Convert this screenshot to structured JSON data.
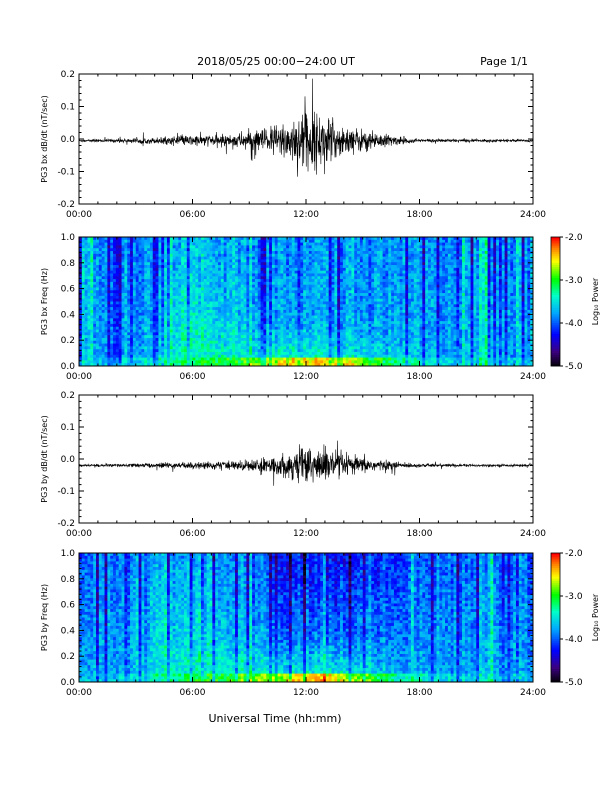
{
  "header": {
    "title": "2018/05/25  00:00−24:00 UT",
    "page": "Page 1/1"
  },
  "footer": {
    "xlabel": "Universal Time (hh:mm)"
  },
  "chart_data": [
    {
      "type": "line",
      "ylabel": "PG3 bx dB/dt (nT/sec)",
      "xlim": [
        0,
        24
      ],
      "ylim": [
        -0.2,
        0.2
      ],
      "xticks": [
        "00:00",
        "06:00",
        "12:00",
        "18:00",
        "24:00"
      ],
      "yticks": [
        "0.2",
        "0.1",
        "0.0",
        "-0.1",
        "-0.2"
      ],
      "baseline": -0.005,
      "envelope": {
        "x": [
          0,
          2,
          4,
          6,
          8,
          10,
          11,
          12,
          13,
          14,
          16,
          17,
          18,
          20,
          22,
          24
        ],
        "amp": [
          0.004,
          0.006,
          0.01,
          0.018,
          0.02,
          0.045,
          0.07,
          0.1,
          0.08,
          0.05,
          0.025,
          0.012,
          0.006,
          0.005,
          0.004,
          0.004
        ]
      }
    },
    {
      "type": "heatmap",
      "ylabel": "PG3 bx Freq (Hz)",
      "xlim": [
        0,
        24
      ],
      "ylim": [
        0,
        1.0
      ],
      "xticks": [
        "00:00",
        "06:00",
        "12:00",
        "18:00",
        "24:00"
      ],
      "yticks": [
        "1.0",
        "0.8",
        "0.6",
        "0.4",
        "0.2",
        "0.0"
      ],
      "colorbar": {
        "label": "Log₁₀ Power",
        "range": [
          -5.0,
          -2.0
        ],
        "ticks": [
          "-2.0",
          "-3.0",
          "-4.0",
          "-5.0"
        ]
      }
    },
    {
      "type": "line",
      "ylabel": "PG3 by dB/dt (nT/sec)",
      "xlim": [
        0,
        24
      ],
      "ylim": [
        -0.2,
        0.2
      ],
      "xticks": [
        "00:00",
        "06:00",
        "12:00",
        "18:00",
        "24:00"
      ],
      "yticks": [
        "0.2",
        "0.1",
        "0.0",
        "-0.1",
        "-0.2"
      ],
      "baseline": -0.02,
      "envelope": {
        "x": [
          0,
          2,
          4,
          6,
          8,
          10,
          11,
          12,
          13,
          14,
          16,
          17,
          18,
          20,
          22,
          24
        ],
        "amp": [
          0.004,
          0.005,
          0.008,
          0.012,
          0.014,
          0.025,
          0.04,
          0.07,
          0.06,
          0.035,
          0.018,
          0.01,
          0.006,
          0.005,
          0.004,
          0.004
        ]
      }
    },
    {
      "type": "heatmap",
      "ylabel": "PG3 by Freq (Hz)",
      "xlim": [
        0,
        24
      ],
      "ylim": [
        0,
        1.0
      ],
      "xticks": [
        "00:00",
        "06:00",
        "12:00",
        "18:00",
        "24:00"
      ],
      "yticks": [
        "1.0",
        "0.8",
        "0.6",
        "0.4",
        "0.2",
        "0.0"
      ],
      "colorbar": {
        "label": "Log₁₀ Power",
        "range": [
          -5.0,
          -2.0
        ],
        "ticks": [
          "-2.0",
          "-3.0",
          "-4.0",
          "-5.0"
        ]
      }
    }
  ]
}
